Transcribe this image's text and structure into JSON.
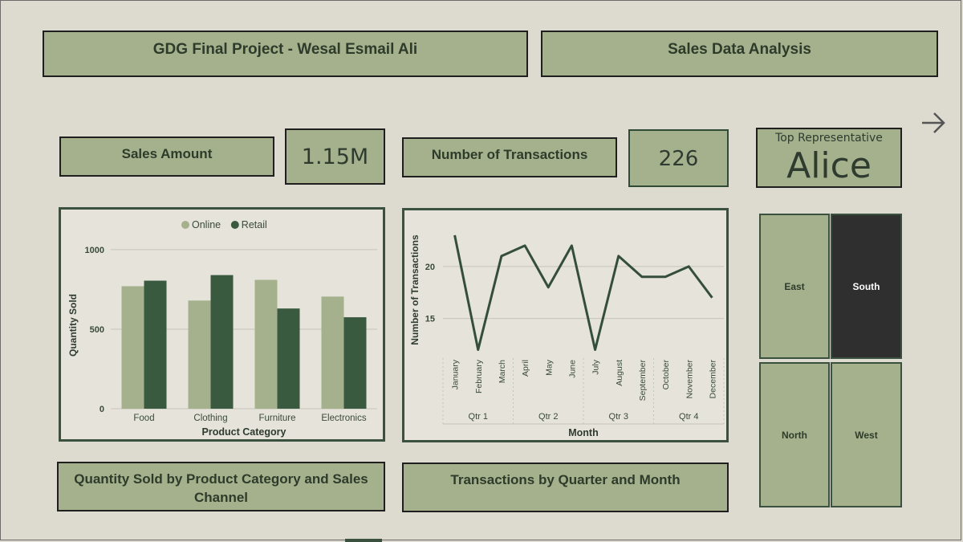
{
  "header": {
    "project_title": "GDG Final Project - Wesal Esmail Ali",
    "dashboard_title": "Sales Data Analysis"
  },
  "kpis": {
    "sales_amount_label": "Sales Amount",
    "sales_amount_value": "1.15M",
    "transactions_label": "Number of Transactions",
    "transactions_value": "226",
    "top_rep_label": "Top Representative",
    "top_rep_value": "Alice"
  },
  "captions": {
    "bar_chart": "Quantity Sold by Product Category and Sales Channel",
    "line_chart": "Transactions by Quarter and Month"
  },
  "regions": [
    {
      "label": "East",
      "selected": false
    },
    {
      "label": "South",
      "selected": true
    },
    {
      "label": "North",
      "selected": false
    },
    {
      "label": "West",
      "selected": false
    }
  ],
  "icons": {
    "next": "arrow-right-icon"
  },
  "colors": {
    "background": "#dddbd0",
    "box_fill": "#a5b18d",
    "online": "#a5b18d",
    "retail": "#3a5a40",
    "line": "#344e3a",
    "selected_tile": "#2f2f2f"
  },
  "chart_data": [
    {
      "type": "bar",
      "categories": [
        "Food",
        "Clothing",
        "Furniture",
        "Electronics"
      ],
      "series": [
        {
          "name": "Online",
          "values": [
            770,
            680,
            810,
            705
          ]
        },
        {
          "name": "Retail",
          "values": [
            805,
            840,
            630,
            575
          ]
        }
      ],
      "xlabel": "Product Category",
      "ylabel": "Quantity Sold",
      "yticks": [
        0,
        500,
        1000
      ],
      "ylim": [
        0,
        1050
      ],
      "legend": "top-center",
      "grid": true
    },
    {
      "type": "line",
      "x": [
        "January",
        "February",
        "March",
        "April",
        "May",
        "June",
        "July",
        "August",
        "September",
        "October",
        "November",
        "December"
      ],
      "quarters": [
        "Qtr 1",
        "Qtr 2",
        "Qtr 3",
        "Qtr 4"
      ],
      "series": [
        {
          "values": [
            23,
            12,
            21,
            22,
            18,
            22,
            12,
            21,
            19,
            19,
            20,
            17
          ]
        }
      ],
      "xlabel": "Month",
      "ylabel": "Number of Transactions",
      "yticks": [
        15,
        20
      ],
      "ylim": [
        11.5,
        24
      ],
      "grid": true
    }
  ]
}
